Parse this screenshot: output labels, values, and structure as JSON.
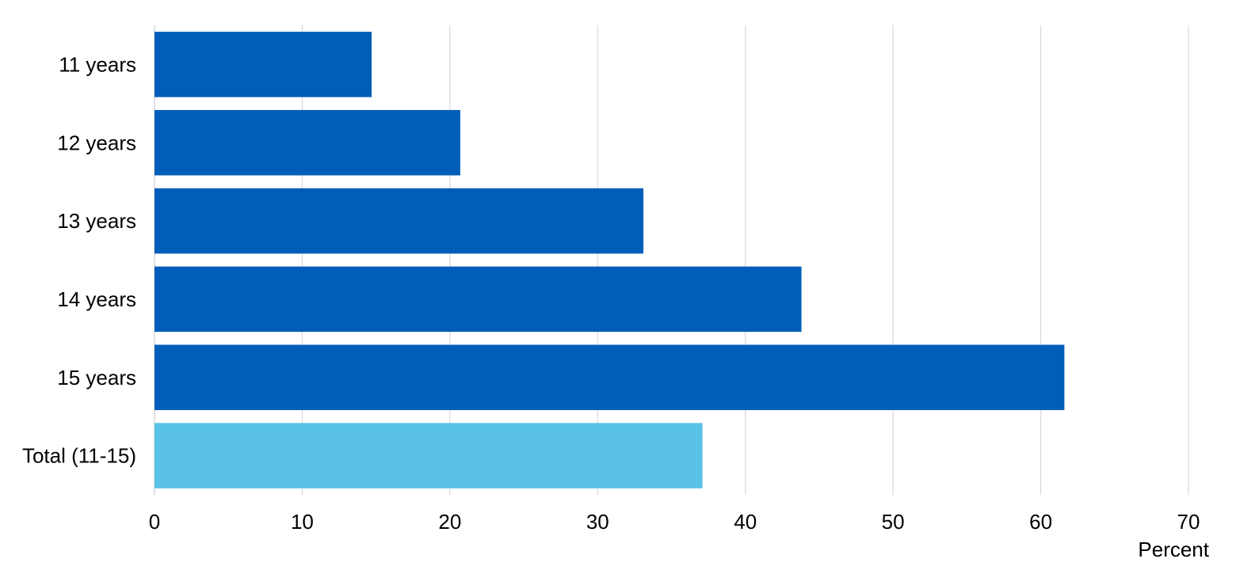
{
  "chart_data": {
    "type": "bar",
    "orientation": "horizontal",
    "categories": [
      "11 years",
      "12 years",
      "13 years",
      "14 years",
      "15 years",
      "Total (11-15)"
    ],
    "values": [
      14.7,
      20.7,
      33.1,
      43.8,
      61.6,
      37.1
    ],
    "bar_colors": [
      "#005EB8",
      "#005EB8",
      "#005EB8",
      "#005EB8",
      "#005EB8",
      "#5BC2E7"
    ],
    "xlim": [
      0,
      70
    ],
    "xticks": [
      "0",
      "10",
      "20",
      "30",
      "40",
      "50",
      "60",
      "70"
    ],
    "xlabel": "Percent",
    "grid": "vertical",
    "legend": "none"
  }
}
